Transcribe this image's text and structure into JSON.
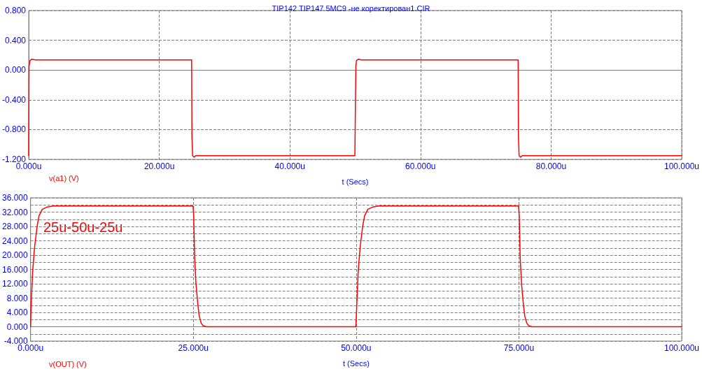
{
  "chart_data": [
    {
      "type": "line",
      "title": "TIP142 TIP147 5MC9 -не коректирован1.CIR",
      "xlabel": "t (Secs)",
      "legend": "bottom left",
      "grid": true,
      "marker": "none",
      "line_style": "solid",
      "xlim": [
        0,
        100
      ],
      "xticks": [
        {
          "value": 0,
          "label": "0.000u"
        },
        {
          "value": 20,
          "label": "20.000u"
        },
        {
          "value": 40,
          "label": "40.000u"
        },
        {
          "value": 60,
          "label": "60.000u"
        },
        {
          "value": 80,
          "label": "80.000u"
        },
        {
          "value": 100,
          "label": "100.000u"
        }
      ],
      "ylim": [
        -1.2,
        0.8
      ],
      "yticks": [
        {
          "value": -1.2,
          "label": "-1.200"
        },
        {
          "value": -0.8,
          "label": "-0.800"
        },
        {
          "value": -0.4,
          "label": "-0.400"
        },
        {
          "value": 0,
          "label": "0.000"
        },
        {
          "value": 0.4,
          "label": "0.400"
        },
        {
          "value": 0.8,
          "label": "0.800"
        }
      ],
      "series": [
        {
          "name": "v(a1) (V)",
          "color": "#ff0000",
          "x": [
            0,
            0.05,
            0.2,
            0.5,
            1,
            24.95,
            25,
            25.1,
            25.3,
            25.6,
            49.95,
            50,
            50.1,
            50.2,
            50.5,
            51,
            74.95,
            75,
            75.1,
            75.3,
            75.6,
            100
          ],
          "values": [
            -1.15,
            0.05,
            0.13,
            0.145,
            0.135,
            0.135,
            -0.9,
            -1.15,
            -1.17,
            -1.15,
            -1.15,
            -1.15,
            0.05,
            0.13,
            0.145,
            0.135,
            0.135,
            -0.9,
            -1.15,
            -1.17,
            -1.15,
            -1.15
          ]
        }
      ]
    },
    {
      "type": "line",
      "xlabel": "t (Secs)",
      "legend": "bottom left",
      "grid": true,
      "marker": "none",
      "line_style": "solid",
      "annotations": [
        "25u-50u-25u"
      ],
      "xlim": [
        0,
        100
      ],
      "xticks": [
        {
          "value": 0,
          "label": "0.000u"
        },
        {
          "value": 25,
          "label": "25.000u"
        },
        {
          "value": 50,
          "label": "50.000u"
        },
        {
          "value": 75,
          "label": "75.000u"
        },
        {
          "value": 100,
          "label": "100.000u"
        }
      ],
      "ylim": [
        -4,
        36
      ],
      "yticks": [
        {
          "value": -4,
          "label": "-4.000"
        },
        {
          "value": -2,
          "label": null
        },
        {
          "value": 0,
          "label": "0.000"
        },
        {
          "value": 2,
          "label": null
        },
        {
          "value": 4,
          "label": "4.000"
        },
        {
          "value": 6,
          "label": null
        },
        {
          "value": 8,
          "label": "8.000"
        },
        {
          "value": 10,
          "label": null
        },
        {
          "value": 12,
          "label": "12.000"
        },
        {
          "value": 14,
          "label": null
        },
        {
          "value": 16,
          "label": "16.000"
        },
        {
          "value": 18,
          "label": null
        },
        {
          "value": 20,
          "label": "20.000"
        },
        {
          "value": 22,
          "label": null
        },
        {
          "value": 24,
          "label": "24.000"
        },
        {
          "value": 26,
          "label": null
        },
        {
          "value": 28,
          "label": "28.000"
        },
        {
          "value": 30,
          "label": null
        },
        {
          "value": 32,
          "label": "32.000"
        },
        {
          "value": 34,
          "label": null
        },
        {
          "value": 36,
          "label": "36.000"
        }
      ],
      "series": [
        {
          "name": "v(OUT) (V)",
          "color": "#ff0000",
          "x": [
            0,
            0.05,
            0.3,
            0.6,
            1,
            1.3,
            1.8,
            2.5,
            3.5,
            24.95,
            25.05,
            25.2,
            25.4,
            25.7,
            25.9,
            26.2,
            26.5,
            27,
            49.95,
            50.05,
            50.3,
            50.6,
            51,
            51.3,
            51.8,
            52.5,
            53.5,
            74.95,
            75.05,
            75.2,
            75.4,
            75.7,
            75.9,
            76.2,
            76.5,
            77,
            100
          ],
          "values": [
            0,
            4,
            15,
            22,
            28,
            31,
            32.8,
            33.4,
            33.7,
            33.7,
            31,
            19,
            12,
            6,
            3,
            1,
            0.3,
            0,
            0,
            4,
            15,
            22,
            28,
            31,
            32.8,
            33.4,
            33.7,
            33.7,
            31,
            19,
            12,
            6,
            3,
            1,
            0.3,
            0,
            0
          ]
        }
      ]
    }
  ]
}
